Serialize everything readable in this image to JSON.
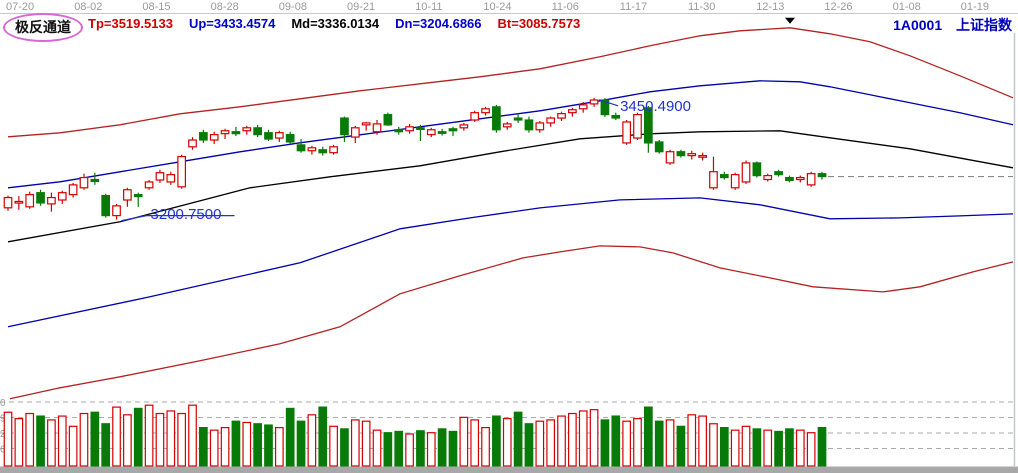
{
  "header": {
    "indicator_name": "极反通道",
    "params": [
      {
        "label": "Tp=3519.5133",
        "color": "#cc0000"
      },
      {
        "label": "Up=3433.4574",
        "color": "#0000cc"
      },
      {
        "label": "Md=3336.0134",
        "color": "#000000"
      },
      {
        "label": "Dn=3204.6866",
        "color": "#0000cc"
      },
      {
        "label": "Bt=3085.7573",
        "color": "#cc0000"
      }
    ],
    "symbol_code": "1A0001",
    "symbol_name": "上证指数"
  },
  "colors": {
    "candle_up": "#d40000",
    "candle_down": "#087a08",
    "channel_red": "#b42222",
    "channel_blue": "#0000aa",
    "channel_mid": "#000000",
    "annotation": "#2233cc",
    "axis_text": "#9a9a9a",
    "grid_dash": "#aaaaaa",
    "last_price_dash": "#8a8a8a",
    "separator": "#c8c8c8",
    "bottom_strip": "#a8a8a8",
    "right_border": "#c0c8d0",
    "ellipse": "#d966d9",
    "marker": "#000000"
  },
  "chart_data": {
    "type": "candlestick",
    "title": "1A0001 上证指数",
    "indicator": "极反通道 (extreme-reversal channel: Tp/Up/Md/Dn/Bt bands)",
    "x_tick_labels": [
      "07-20",
      "08-02",
      "08-15",
      "08-28",
      "09-08",
      "09-21",
      "10-11",
      "10-24",
      "11-06",
      "11-17",
      "11-30",
      "12-13",
      "12-26",
      "01-08",
      "01-19"
    ],
    "ylim": [
      2831,
      3610
    ],
    "grid": "dashed horizontal gridlines in volume pane only",
    "legend_position": "top-left parameter row",
    "candles_ohlc": [
      [
        3225,
        3250,
        3219,
        3246
      ],
      [
        3235,
        3249,
        3221,
        3238
      ],
      [
        3227,
        3258,
        3223,
        3252
      ],
      [
        3256,
        3262,
        3229,
        3235
      ],
      [
        3233,
        3256,
        3217,
        3246
      ],
      [
        3241,
        3260,
        3233,
        3256
      ],
      [
        3252,
        3276,
        3246,
        3272
      ],
      [
        3266,
        3295,
        3262,
        3287
      ],
      [
        3283,
        3297,
        3272,
        3279
      ],
      [
        3250,
        3254,
        3205,
        3209
      ],
      [
        3209,
        3233,
        3200.75,
        3229
      ],
      [
        3241,
        3266,
        3227,
        3262
      ],
      [
        3252,
        3256,
        3227,
        3248
      ],
      [
        3266,
        3282,
        3262,
        3278
      ],
      [
        3282,
        3303,
        3276,
        3297
      ],
      [
        3278,
        3299,
        3272,
        3293
      ],
      [
        3268,
        3334,
        3264,
        3330
      ],
      [
        3350,
        3370,
        3344,
        3364
      ],
      [
        3379,
        3385,
        3358,
        3364
      ],
      [
        3364,
        3381,
        3356,
        3375
      ],
      [
        3377,
        3387,
        3366,
        3383
      ],
      [
        3381,
        3391,
        3372,
        3377
      ],
      [
        3383,
        3393,
        3375,
        3389
      ],
      [
        3389,
        3395,
        3370,
        3375
      ],
      [
        3379,
        3385,
        3362,
        3366
      ],
      [
        3368,
        3383,
        3360,
        3379
      ],
      [
        3375,
        3381,
        3356,
        3360
      ],
      [
        3354,
        3366,
        3338,
        3342
      ],
      [
        3342,
        3352,
        3334,
        3348
      ],
      [
        3344,
        3350,
        3332,
        3338
      ],
      [
        3338,
        3354,
        3334,
        3350
      ],
      [
        3409,
        3412,
        3360,
        3375
      ],
      [
        3370,
        3393,
        3358,
        3389
      ],
      [
        3395,
        3401,
        3383,
        3399
      ],
      [
        3381,
        3405,
        3375,
        3397
      ],
      [
        3416,
        3420,
        3393,
        3395
      ],
      [
        3385,
        3391,
        3375,
        3381
      ],
      [
        3383,
        3397,
        3377,
        3391
      ],
      [
        3389,
        3395,
        3362,
        3387
      ],
      [
        3375,
        3389,
        3370,
        3385
      ],
      [
        3381,
        3387,
        3373,
        3379
      ],
      [
        3387,
        3391,
        3372,
        3383
      ],
      [
        3389,
        3399,
        3383,
        3395
      ],
      [
        3405,
        3424,
        3401,
        3420
      ],
      [
        3420,
        3432,
        3414,
        3428
      ],
      [
        3432,
        3436,
        3379,
        3385
      ],
      [
        3391,
        3401,
        3385,
        3397
      ],
      [
        3409,
        3416,
        3399,
        3405
      ],
      [
        3405,
        3412,
        3379,
        3385
      ],
      [
        3385,
        3403,
        3379,
        3399
      ],
      [
        3399,
        3412,
        3391,
        3409
      ],
      [
        3409,
        3422,
        3403,
        3418
      ],
      [
        3420,
        3430,
        3412,
        3426
      ],
      [
        3428,
        3442,
        3420,
        3436
      ],
      [
        3438,
        3450.49,
        3432,
        3446
      ],
      [
        3446,
        3450,
        3411,
        3416
      ],
      [
        3414,
        3420,
        3405,
        3409
      ],
      [
        3358,
        3405,
        3354,
        3401
      ],
      [
        3368,
        3420,
        3364,
        3416
      ],
      [
        3430,
        3434,
        3338,
        3358
      ],
      [
        3360,
        3364,
        3336,
        3340
      ],
      [
        3317,
        3344,
        3313,
        3340
      ],
      [
        3340,
        3344,
        3328,
        3332
      ],
      [
        3332,
        3342,
        3324,
        3336
      ],
      [
        3330,
        3338,
        3322,
        3332
      ],
      [
        3266,
        3330,
        3262,
        3299
      ],
      [
        3293,
        3299,
        3283,
        3287
      ],
      [
        3266,
        3297,
        3262,
        3293
      ],
      [
        3278,
        3322,
        3274,
        3317
      ],
      [
        3317,
        3320,
        3287,
        3291
      ],
      [
        3283,
        3295,
        3279,
        3291
      ],
      [
        3299,
        3303,
        3289,
        3293
      ],
      [
        3287,
        3291,
        3277,
        3281
      ],
      [
        3283,
        3291,
        3277,
        3287
      ],
      [
        3272,
        3299,
        3268,
        3295
      ],
      [
        3295,
        3299,
        3283,
        3289
      ]
    ],
    "volumes_rel": [
      0.84,
      0.74,
      0.82,
      0.78,
      0.72,
      0.78,
      0.62,
      0.82,
      0.84,
      0.66,
      0.92,
      0.8,
      0.9,
      0.95,
      0.82,
      0.86,
      0.82,
      0.95,
      0.6,
      0.56,
      0.6,
      0.7,
      0.68,
      0.66,
      0.64,
      0.6,
      0.9,
      0.7,
      0.8,
      0.92,
      0.62,
      0.58,
      0.72,
      0.7,
      0.56,
      0.52,
      0.54,
      0.5,
      0.55,
      0.52,
      0.58,
      0.54,
      0.76,
      0.72,
      0.6,
      0.78,
      0.74,
      0.84,
      0.66,
      0.7,
      0.72,
      0.78,
      0.82,
      0.86,
      0.88,
      0.72,
      0.78,
      0.7,
      0.74,
      0.92,
      0.7,
      0.72,
      0.62,
      0.8,
      0.78,
      0.66,
      0.6,
      0.56,
      0.62,
      0.58,
      0.56,
      0.54,
      0.58,
      0.56,
      0.52,
      0.6
    ],
    "channel_lines": {
      "tp": {
        "name": "Tp",
        "color": "#b42222",
        "points": [
          [
            8,
            3370.5
          ],
          [
            60,
            3378.7
          ],
          [
            120,
            3395.1
          ],
          [
            180,
            3417.7
          ],
          [
            240,
            3432
          ],
          [
            300,
            3448.4
          ],
          [
            360,
            3464.8
          ],
          [
            420,
            3479.2
          ],
          [
            480,
            3493.5
          ],
          [
            540,
            3509.9
          ],
          [
            600,
            3534.5
          ],
          [
            650,
            3557.1
          ],
          [
            700,
            3577.6
          ],
          [
            740,
            3587.8
          ],
          [
            790,
            3594
          ],
          [
            830,
            3581.7
          ],
          [
            870,
            3565.3
          ],
          [
            910,
            3536.6
          ],
          [
            960,
            3495.6
          ],
          [
            1013,
            3450.5
          ]
        ]
      },
      "up": {
        "name": "Up",
        "color": "#0000aa",
        "points": [
          [
            8,
            3266
          ],
          [
            60,
            3278.3
          ],
          [
            120,
            3298.8
          ],
          [
            180,
            3319.3
          ],
          [
            240,
            3339.8
          ],
          [
            300,
            3358.2
          ],
          [
            360,
            3374.6
          ],
          [
            420,
            3391
          ],
          [
            480,
            3407.4
          ],
          [
            540,
            3423.8
          ],
          [
            600,
            3444.3
          ],
          [
            650,
            3462.8
          ],
          [
            700,
            3475.1
          ],
          [
            760,
            3485.3
          ],
          [
            800,
            3483.3
          ],
          [
            830,
            3473
          ],
          [
            870,
            3456.6
          ],
          [
            910,
            3440.2
          ],
          [
            960,
            3419.7
          ],
          [
            1013,
            3395.1
          ]
        ]
      },
      "md": {
        "name": "Md",
        "color": "#000000",
        "points": [
          [
            8,
            3155.3
          ],
          [
            120,
            3196.3
          ],
          [
            250,
            3266
          ],
          [
            330,
            3288.6
          ],
          [
            420,
            3311.1
          ],
          [
            500,
            3339.8
          ],
          [
            580,
            3366.4
          ],
          [
            650,
            3376.7
          ],
          [
            700,
            3380.8
          ],
          [
            780,
            3382.8
          ],
          [
            830,
            3368.5
          ],
          [
            910,
            3345.9
          ],
          [
            1013,
            3307
          ]
        ]
      },
      "dn": {
        "name": "Dn",
        "color": "#0000aa",
        "points": [
          [
            8,
            2981
          ],
          [
            150,
            3042.5
          ],
          [
            300,
            3112.2
          ],
          [
            400,
            3181.9
          ],
          [
            470,
            3204.4
          ],
          [
            540,
            3224.9
          ],
          [
            620,
            3241.3
          ],
          [
            700,
            3245.4
          ],
          [
            760,
            3231.1
          ],
          [
            830,
            3202.4
          ],
          [
            900,
            3204.4
          ],
          [
            960,
            3208.5
          ],
          [
            1013,
            3212.6
          ]
        ]
      },
      "bt": {
        "name": "Bt",
        "color": "#b42222",
        "points": [
          [
            10,
            2833.4
          ],
          [
            60,
            2856
          ],
          [
            120,
            2878.5
          ],
          [
            200,
            2911.3
          ],
          [
            280,
            2946.2
          ],
          [
            340,
            2981
          ],
          [
            400,
            3048.7
          ],
          [
            460,
            3085.6
          ],
          [
            523,
            3122.4
          ],
          [
            560,
            3134.7
          ],
          [
            600,
            3147
          ],
          [
            640,
            3144.9
          ],
          [
            673,
            3132.6
          ],
          [
            720,
            3101.9
          ],
          [
            770,
            3081.4
          ],
          [
            813,
            3063
          ],
          [
            883,
            3052.7
          ],
          [
            920,
            3063
          ],
          [
            973,
            3093.7
          ],
          [
            1013,
            3114.2
          ]
        ]
      }
    },
    "annotations": [
      {
        "text": "3450.4900",
        "price": 3450.49,
        "candle_index": 54,
        "color": "#2233cc"
      },
      {
        "text": "3200.7500",
        "price": 3200.75,
        "candle_index": 10,
        "color": "#2233cc"
      }
    ],
    "last_price": 3289,
    "peak_marker": {
      "shape": "triangle-down",
      "x": 790,
      "on": "tp-line"
    },
    "volume_axis_labels": [
      "0",
      "9",
      "2",
      "6"
    ]
  }
}
